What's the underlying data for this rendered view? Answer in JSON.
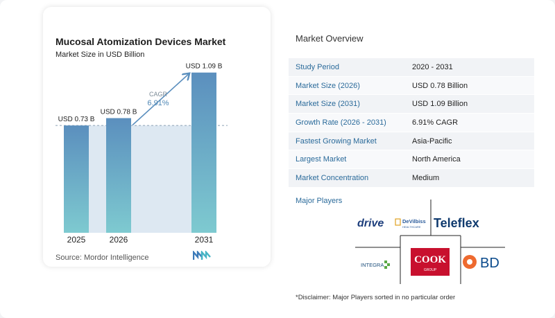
{
  "chart": {
    "title": "Mucosal Atomization Devices Market",
    "subtitle": "Market Size in USD Billion",
    "source": "Source:  Mordor Intelligence",
    "cagr_label": "CAGR",
    "cagr_value": "6.91%"
  },
  "chart_data": {
    "type": "bar",
    "title": "Mucosal Atomization Devices Market",
    "subtitle": "Market Size in USD Billion",
    "categories": [
      "2025",
      "2026",
      "2031"
    ],
    "values": [
      0.73,
      0.78,
      1.09
    ],
    "data_labels": [
      "USD 0.73 B",
      "USD 0.78 B",
      "USD 1.09 B"
    ],
    "ylim": [
      0,
      1.15
    ],
    "grid": false,
    "reference_line": 0.73,
    "annotation": "CAGR 6.91%",
    "colors": {
      "bar_top": "#5b8fbe",
      "bar_bottom": "#7ecad0",
      "shade": "#dde8f2",
      "arrow": "#5b8fbe"
    }
  },
  "overview": {
    "title": "Market Overview",
    "rows": [
      {
        "key": "Study Period",
        "value": "2020 - 2031"
      },
      {
        "key": "Market Size (2026)",
        "value": "USD 0.78 Billion"
      },
      {
        "key": "Market Size (2031)",
        "value": "USD 1.09 Billion"
      },
      {
        "key": "Growth Rate (2026 - 2031)",
        "value": "6.91% CAGR"
      },
      {
        "key": "Fastest Growing Market",
        "value": "Asia-Pacific"
      },
      {
        "key": "Largest Market",
        "value": "North America"
      },
      {
        "key": "Market Concentration",
        "value": "Medium"
      }
    ]
  },
  "players": {
    "title": "Major Players",
    "logos": {
      "drive": "drive",
      "devilbiss": "DeVilbiss",
      "devilbiss_sub": "HEALTHCARE",
      "teleflex": "Teleflex",
      "integra": "INTEGRA",
      "cook": "COOK",
      "cook_sub": "GROUP",
      "bd": "BD"
    }
  },
  "disclaimer": "*Disclaimer: Major Players sorted in no particular order"
}
